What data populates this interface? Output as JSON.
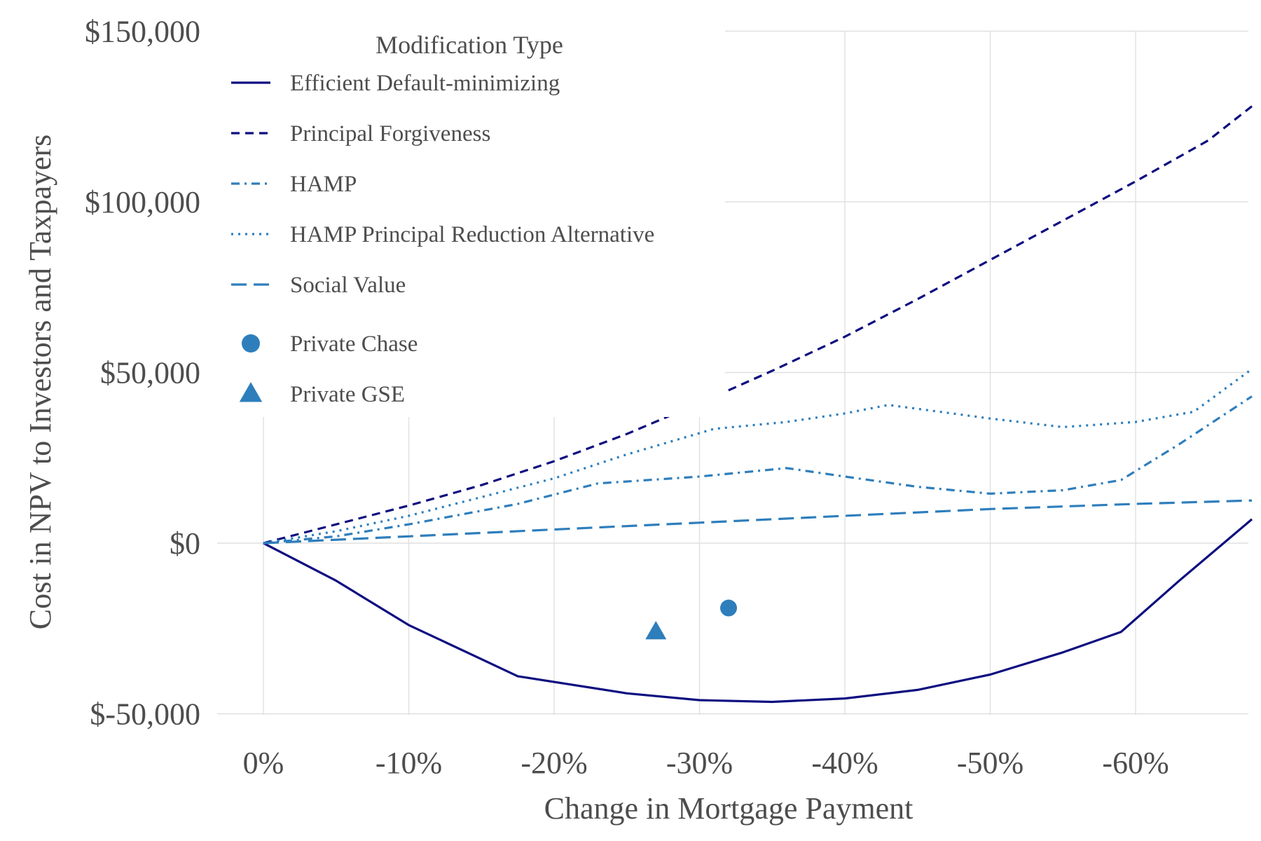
{
  "chart_data": {
    "type": "line",
    "xlabel": "Change in Mortgage Payment",
    "ylabel": "Cost in NPV to Investors and Taxpayers",
    "xlim": [
      0,
      -0.68
    ],
    "ylim": [
      -50000,
      150000
    ],
    "x_ticks": [
      0,
      -0.1,
      -0.2,
      -0.3,
      -0.4,
      -0.5,
      -0.6
    ],
    "x_tick_labels": [
      "0%",
      "-10%",
      "-20%",
      "-30%",
      "-40%",
      "-50%",
      "-60%"
    ],
    "y_ticks": [
      -50000,
      0,
      50000,
      100000,
      150000
    ],
    "y_tick_labels": [
      "$-50,000",
      "$0",
      "$50,000",
      "$100,000",
      "$150,000"
    ],
    "grid": true,
    "legend": {
      "title": "Modification Type",
      "placement": "top-left"
    },
    "series": [
      {
        "name": "Efficient Default-minimizing",
        "style": "solid",
        "color": "#0d0d80",
        "x": [
          0,
          -0.05,
          -0.1,
          -0.15,
          -0.175,
          -0.25,
          -0.3,
          -0.35,
          -0.4,
          -0.45,
          -0.5,
          -0.55,
          -0.59,
          -0.63,
          -0.68
        ],
        "y": [
          0,
          -11000,
          -24000,
          -34000,
          -39000,
          -44000,
          -46000,
          -46500,
          -45500,
          -43000,
          -38500,
          -32000,
          -26000,
          -11000,
          7000
        ]
      },
      {
        "name": "Principal Forgiveness",
        "style": "dashed",
        "color": "#0d0d80",
        "x": [
          0,
          -0.05,
          -0.1,
          -0.15,
          -0.2,
          -0.25,
          -0.3,
          -0.35,
          -0.4,
          -0.45,
          -0.5,
          -0.55,
          -0.6,
          -0.65,
          -0.68
        ],
        "y": [
          0,
          5500,
          11000,
          17000,
          24000,
          32000,
          41000,
          50500,
          60500,
          71500,
          83000,
          94500,
          106000,
          118000,
          128000
        ]
      },
      {
        "name": "HAMP",
        "style": "dashdot",
        "color": "#2e7ebc",
        "x": [
          0,
          -0.05,
          -0.1,
          -0.175,
          -0.23,
          -0.3,
          -0.36,
          -0.4,
          -0.45,
          -0.5,
          -0.55,
          -0.59,
          -0.63,
          -0.68
        ],
        "y": [
          0,
          2000,
          5500,
          11500,
          17500,
          19500,
          22000,
          19500,
          16500,
          14500,
          15500,
          18500,
          29000,
          43000
        ]
      },
      {
        "name": "HAMP Principal Reduction Alternative",
        "style": "dotted",
        "color": "#2e7ebc",
        "x": [
          0,
          -0.05,
          -0.1,
          -0.15,
          -0.2,
          -0.25,
          -0.31,
          -0.36,
          -0.4,
          -0.43,
          -0.5,
          -0.55,
          -0.6,
          -0.64,
          -0.68
        ],
        "y": [
          0,
          3500,
          8000,
          13500,
          19000,
          26000,
          33500,
          35500,
          38000,
          40500,
          36500,
          34000,
          35500,
          38500,
          51000
        ]
      },
      {
        "name": "Social Value",
        "style": "longdash",
        "color": "#2e7ebc",
        "x": [
          0,
          -0.1,
          -0.2,
          -0.3,
          -0.4,
          -0.5,
          -0.6,
          -0.68
        ],
        "y": [
          0,
          2000,
          4000,
          6000,
          8000,
          10000,
          11500,
          12500
        ]
      }
    ],
    "points": [
      {
        "name": "Private Chase",
        "marker": "circle",
        "color": "#2e7ebc",
        "x": -0.32,
        "y": -19000
      },
      {
        "name": "Private GSE",
        "marker": "triangle",
        "color": "#2e7ebc",
        "x": -0.27,
        "y": -26000
      }
    ]
  }
}
